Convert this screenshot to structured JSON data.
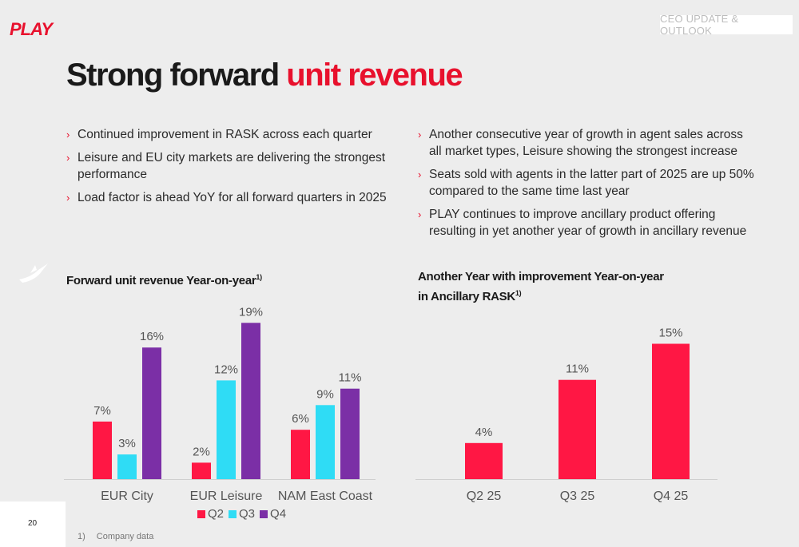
{
  "header": {
    "logo_text": "PLAY",
    "section_tag": "CEO UPDATE & OUTLOOK",
    "title_main": "Strong forward",
    "title_accent": "unit revenue"
  },
  "bullets_left": [
    "Continued improvement in RASK across each quarter",
    "Leisure and EU city markets are delivering the strongest performance",
    "Load factor is ahead YoY for all forward quarters in 2025"
  ],
  "bullets_right": [
    "Another consecutive year of growth in agent sales across all market types, Leisure showing the strongest increase",
    "Seats sold with agents in the latter part of 2025 are up 50% compared to the same time last year",
    "PLAY continues to improve ancillary product offering resulting in yet another year of growth in ancillary revenue"
  ],
  "icons": {
    "logo": "play-logo",
    "bird": "play-bird-icon",
    "bullet": "chevron-right-icon"
  },
  "colors": {
    "accent": "#e8112d",
    "q2": "#ff1744",
    "q3": "#2fdcf5",
    "q4": "#7b2fa6",
    "text": "#222222",
    "background": "#ededed"
  },
  "chart_data": [
    {
      "type": "bar",
      "title": "Forward unit revenue Year-on-year",
      "title_sup": "1)",
      "categories": [
        "EUR City",
        "EUR Leisure",
        "NAM East Coast"
      ],
      "series": [
        {
          "name": "Q2",
          "values": [
            7,
            2,
            6
          ],
          "labels": [
            "7%",
            "2%",
            "6%"
          ]
        },
        {
          "name": "Q3",
          "values": [
            3,
            12,
            9
          ],
          "labels": [
            "3%",
            "12%",
            "9%"
          ]
        },
        {
          "name": "Q4",
          "values": [
            16,
            19,
            11
          ],
          "labels": [
            "16%",
            "19%",
            "11%"
          ]
        }
      ],
      "legend_position": "bottom"
    },
    {
      "type": "bar",
      "title_line1": "Another Year with improvement Year-on-year",
      "title_line2": "in Ancillary RASK",
      "title_sup": "1)",
      "categories": [
        "Q2 25",
        "Q3 25",
        "Q4 25"
      ],
      "values": [
        4,
        11,
        15
      ],
      "labels": [
        "4%",
        "11%",
        "15%"
      ]
    }
  ],
  "footer": {
    "page_number": "20",
    "footnote_number": "1)",
    "footnote_text": "Company data"
  }
}
